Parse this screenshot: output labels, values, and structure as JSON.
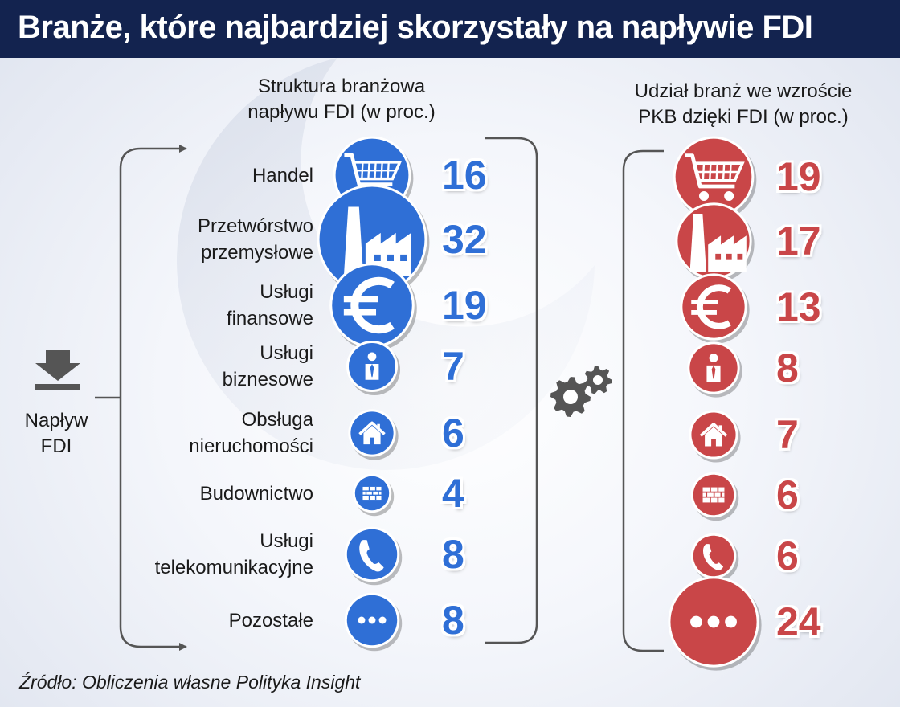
{
  "header": {
    "title": "Branże, które najbardziej skorzystały na napływie FDI"
  },
  "inflow": {
    "line1": "Napływ",
    "line2": "FDI"
  },
  "source": "Źródło: Obliczenia własne Polityka Insight",
  "colors": {
    "blue": "#2f6fd6",
    "red": "#c94648",
    "header": "#13234f"
  },
  "chart_data": [
    {
      "type": "bubble",
      "title": [
        "Struktura branżowa",
        "napływu FDI (w proc.)"
      ],
      "categories": [
        [
          "Handel"
        ],
        [
          "Przetwórstwo",
          "przemysłowe"
        ],
        [
          "Usługi",
          "finansowe"
        ],
        [
          "Usługi",
          "biznesowe"
        ],
        [
          "Obsługa",
          "nieruchomości"
        ],
        [
          "Budownictwo"
        ],
        [
          "Usługi",
          "telekomunikacyjne"
        ],
        [
          "Pozostałe"
        ]
      ],
      "icons": [
        "cart-icon",
        "factory-icon",
        "euro-icon",
        "businessman-icon",
        "house-icon",
        "brick-wall-icon",
        "phone-icon",
        "more-dots-icon"
      ],
      "values": [
        16,
        32,
        19,
        7,
        6,
        4,
        8,
        8
      ],
      "color": "#2f6fd6"
    },
    {
      "type": "bubble",
      "title": [
        "Udział branż we wzroście",
        "PKB dzięki FDI (w proc.)"
      ],
      "icons": [
        "cart-icon",
        "factory-icon",
        "euro-icon",
        "businessman-icon",
        "house-icon",
        "brick-wall-icon",
        "phone-icon",
        "more-dots-icon"
      ],
      "values": [
        19,
        17,
        13,
        8,
        7,
        6,
        6,
        24
      ],
      "color": "#c94648"
    }
  ]
}
